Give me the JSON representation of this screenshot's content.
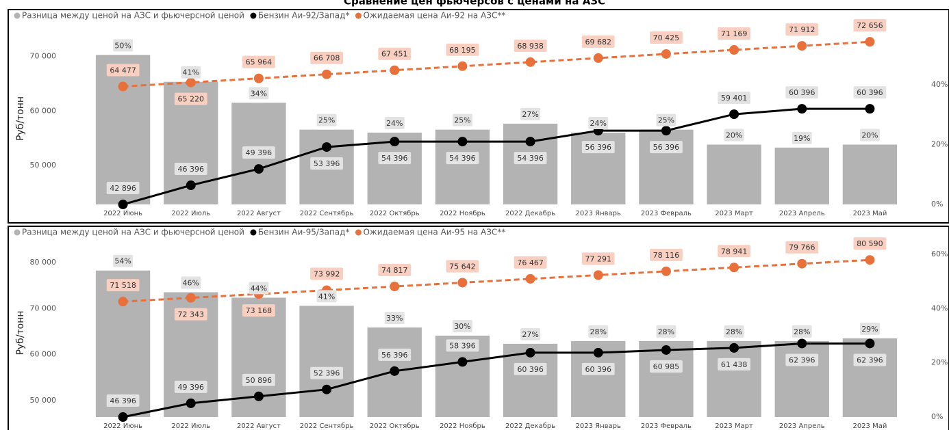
{
  "chart_data": [
    {
      "type": "combo",
      "title": "Сравнение цен фьючерсов с ценами на АЗС",
      "ylabel": "Руб/тонн",
      "categories": [
        "2022 Июнь",
        "2022 Июль",
        "2022 Август",
        "2022 Сентябрь",
        "2022 Октябрь",
        "2022 Ноябрь",
        "2022 Декабрь",
        "2023 Январь",
        "2023 Февраль",
        "2023 Март",
        "2023 Апрель",
        "2023 Май"
      ],
      "series": [
        {
          "name": "Разница между ценой на АЗС и фьючерсной ценой",
          "type": "bar",
          "axis": "y2",
          "color": "#b3b3b3",
          "values": [
            50,
            41,
            34,
            25,
            24,
            25,
            27,
            24,
            25,
            20,
            19,
            20
          ],
          "value_labels": [
            "50%",
            "41%",
            "34%",
            "25%",
            "24%",
            "25%",
            "27%",
            "24%",
            "25%",
            "20%",
            "19%",
            "20%"
          ]
        },
        {
          "name": "Бензин Аи-92/Запад*",
          "type": "line",
          "color": "#000000",
          "values": [
            42896,
            46396,
            49396,
            53396,
            54396,
            54396,
            54396,
            56396,
            56396,
            59401,
            60396,
            60396
          ],
          "value_labels": [
            "42 896",
            "46 396",
            "49 396",
            "53 396",
            "54 396",
            "54 396",
            "54 396",
            "56 396",
            "56 396",
            "59 401",
            "60 396",
            "60 396"
          ]
        },
        {
          "name": "Ожидаемая цена Аи-92 на АЗС**",
          "type": "line",
          "dashed": true,
          "color": "#e8703a",
          "values": [
            64477,
            65220,
            65964,
            66708,
            67451,
            68195,
            68938,
            69682,
            70425,
            71169,
            71912,
            72656
          ],
          "value_labels": [
            "64 477",
            "65 220",
            "65 964",
            "66 708",
            "67 451",
            "68 195",
            "68 938",
            "69 682",
            "70 425",
            "71 169",
            "71 912",
            "72 656"
          ]
        }
      ],
      "ylim": [
        42900,
        74300
      ],
      "yticks": [
        {
          "value": 50000,
          "label": "50 000"
        },
        {
          "value": 60000,
          "label": "60 000"
        },
        {
          "value": 70000,
          "label": "70 000"
        }
      ],
      "y2lim": [
        0,
        57.4
      ],
      "y2ticks": [
        {
          "value": 0,
          "label": "0%"
        },
        {
          "value": 20,
          "label": "20%"
        },
        {
          "value": 40,
          "label": "40%"
        }
      ]
    },
    {
      "type": "combo",
      "ylabel": "Руб/тонн",
      "categories": [
        "2022 Июнь",
        "2022 Июль",
        "2022 Август",
        "2022 Сентябрь",
        "2022 Октябрь",
        "2022 Ноябрь",
        "2022 Декабрь",
        "2023 Январь",
        "2023 Февраль",
        "2023 Март",
        "2023 Апрель",
        "2023 Май"
      ],
      "series": [
        {
          "name": "Разница между ценой на АЗС и фьючерсной ценой",
          "type": "bar",
          "axis": "y2",
          "color": "#b3b3b3",
          "values": [
            54,
            46,
            44,
            41,
            33,
            30,
            27,
            28,
            28,
            28,
            28,
            29
          ],
          "value_labels": [
            "54%",
            "46%",
            "44%",
            "41%",
            "33%",
            "30%",
            "27%",
            "28%",
            "28%",
            "28%",
            "28%",
            "29%"
          ]
        },
        {
          "name": "Бензин Аи-95/Запад*",
          "type": "line",
          "color": "#000000",
          "values": [
            46396,
            49396,
            50896,
            52396,
            56396,
            58396,
            60396,
            60396,
            60985,
            61438,
            62396,
            62396
          ],
          "value_labels": [
            "46 396",
            "49 396",
            "50 896",
            "52 396",
            "56 396",
            "58 396",
            "60 396",
            "60 396",
            "60 985",
            "61 438",
            "62 396",
            "62 396"
          ]
        },
        {
          "name": "Ожидаемая цена Аи-95 на АЗС**",
          "type": "line",
          "dashed": true,
          "color": "#e8703a",
          "values": [
            71518,
            72343,
            73168,
            73992,
            74817,
            75642,
            76467,
            77291,
            78116,
            78941,
            79766,
            80590
          ],
          "value_labels": [
            "71 518",
            "72 343",
            "73 168",
            "73 992",
            "74 817",
            "75 642",
            "76 467",
            "77 291",
            "78 116",
            "78 941",
            "79 766",
            "80 590"
          ]
        }
      ],
      "ylim": [
        46400,
        83000
      ],
      "yticks": [
        {
          "value": 50000,
          "label": "50 000"
        },
        {
          "value": 60000,
          "label": "60 000"
        },
        {
          "value": 70000,
          "label": "70 000"
        },
        {
          "value": 80000,
          "label": "80 000"
        }
      ],
      "y2lim": [
        0,
        62
      ],
      "y2ticks": [
        {
          "value": 0,
          "label": "0%"
        },
        {
          "value": 20,
          "label": "20%"
        },
        {
          "value": 40,
          "label": "40%"
        },
        {
          "value": 60,
          "label": "60%"
        }
      ]
    }
  ]
}
